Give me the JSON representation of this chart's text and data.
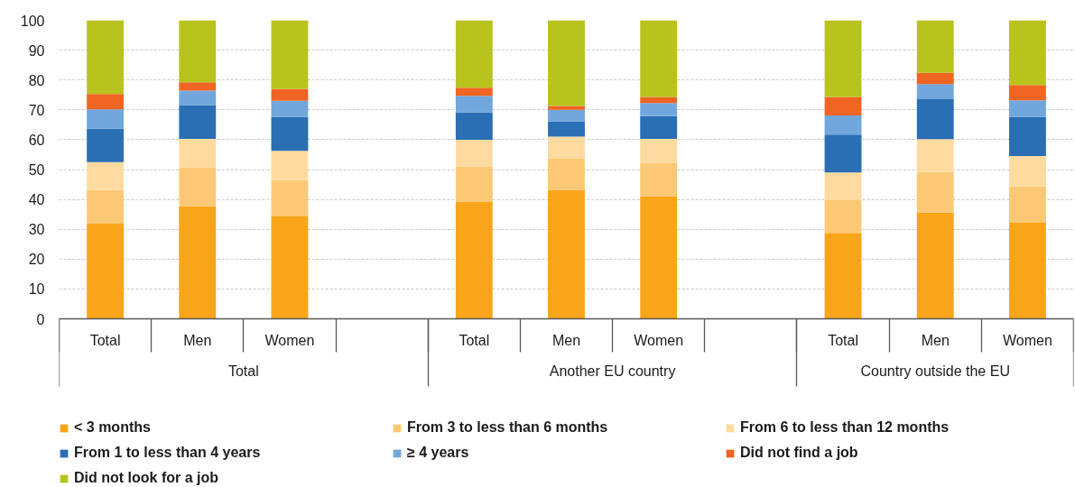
{
  "chart_data": {
    "type": "bar",
    "stacked": true,
    "categories": [
      "Total",
      "Men",
      "Women",
      null,
      "Total",
      "Men",
      "Women",
      null,
      "Total",
      "Men",
      "Women"
    ],
    "annotations": [
      "Total",
      "Another EU country",
      "Country outside the EU"
    ],
    "series": [
      {
        "name": "< 3 months",
        "color": "#f9a51a",
        "values": [
          31.9,
          37.7,
          34.5,
          null,
          39.1,
          43.1,
          41.1,
          null,
          28.8,
          35.6,
          32.2
        ]
      },
      {
        "name": "From 3 to less than 6 months",
        "color": "#fbc976",
        "values": [
          11.2,
          12.9,
          12.0,
          null,
          11.8,
          10.5,
          11.2,
          null,
          10.9,
          13.6,
          12.2
        ]
      },
      {
        "name": "From 6 to less than 12 months",
        "color": "#fddba0",
        "values": [
          9.4,
          9.7,
          9.8,
          null,
          9.1,
          7.4,
          8.0,
          null,
          9.3,
          11.0,
          10.1
        ]
      },
      {
        "name": "From 1 to less than 4 years",
        "color": "#2a6eb4",
        "values": [
          11.2,
          11.3,
          11.3,
          null,
          9.2,
          5.2,
          7.6,
          null,
          12.7,
          13.4,
          13.1
        ]
      },
      {
        "name": "≥ 4 years",
        "color": "#71a7dc",
        "values": [
          6.5,
          4.8,
          5.4,
          null,
          5.5,
          3.8,
          4.4,
          null,
          6.4,
          5.0,
          5.6
        ]
      },
      {
        "name": "Did not find a job",
        "color": "#f06424",
        "values": [
          5.1,
          2.8,
          4.0,
          null,
          2.7,
          1.3,
          2.0,
          null,
          6.2,
          3.8,
          5.1
        ]
      },
      {
        "name": "Did not look for a job",
        "color": "#b9c31e",
        "values": [
          24.7,
          20.8,
          23.0,
          null,
          22.6,
          28.7,
          25.7,
          null,
          25.7,
          17.6,
          21.7
        ]
      }
    ],
    "ylim": [
      0,
      100
    ],
    "yticks": [
      0,
      10,
      20,
      30,
      40,
      50,
      60,
      70,
      80,
      90,
      100
    ],
    "grid": "y",
    "legend": "bottom"
  }
}
